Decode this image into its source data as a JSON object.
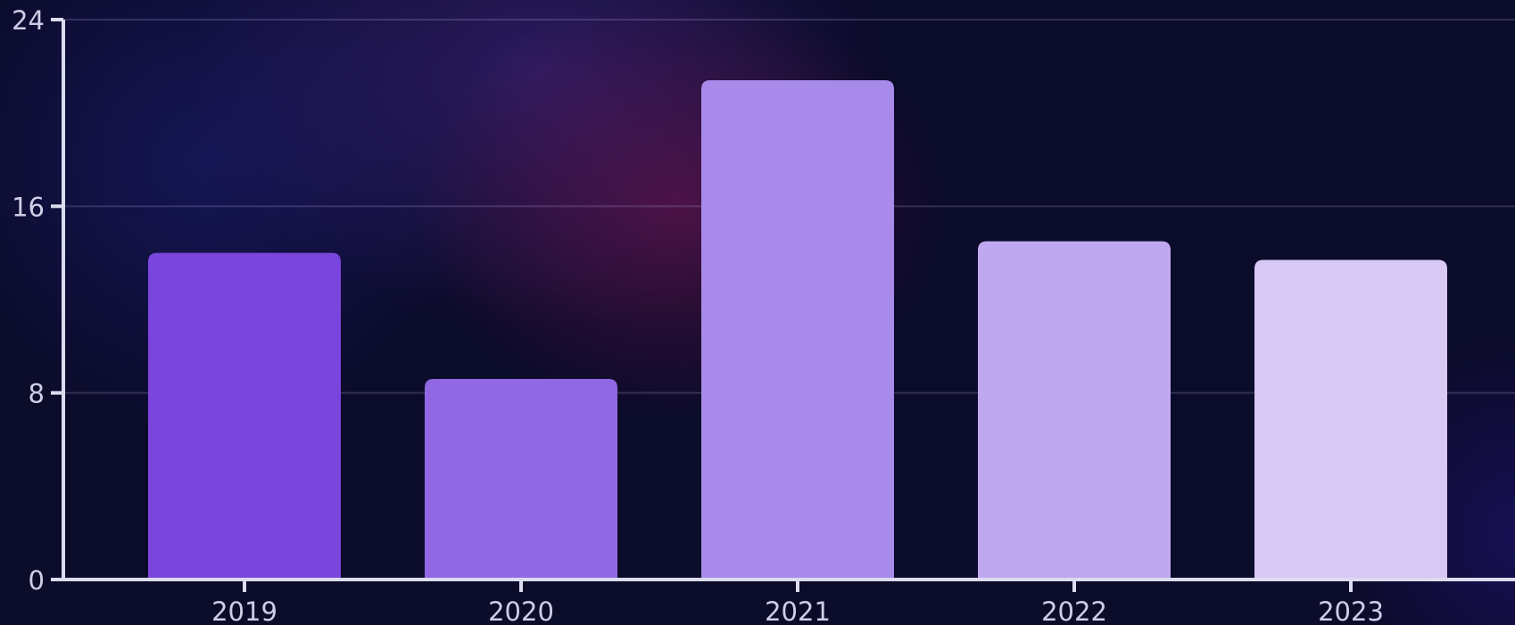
{
  "chart_data": {
    "type": "bar",
    "categories": [
      "2019",
      "2020",
      "2021",
      "2022",
      "2023"
    ],
    "values": [
      14.0,
      8.6,
      21.4,
      14.5,
      13.7
    ],
    "bar_colors": [
      "#7a45dc",
      "#9168e3",
      "#a78ae9",
      "#c0a8f0",
      "#d8c8f4"
    ],
    "ylim": [
      0,
      24
    ],
    "yticks": [
      "0",
      "8",
      "16",
      "24"
    ],
    "grid": true,
    "title": "",
    "xlabel": "",
    "ylabel": ""
  }
}
